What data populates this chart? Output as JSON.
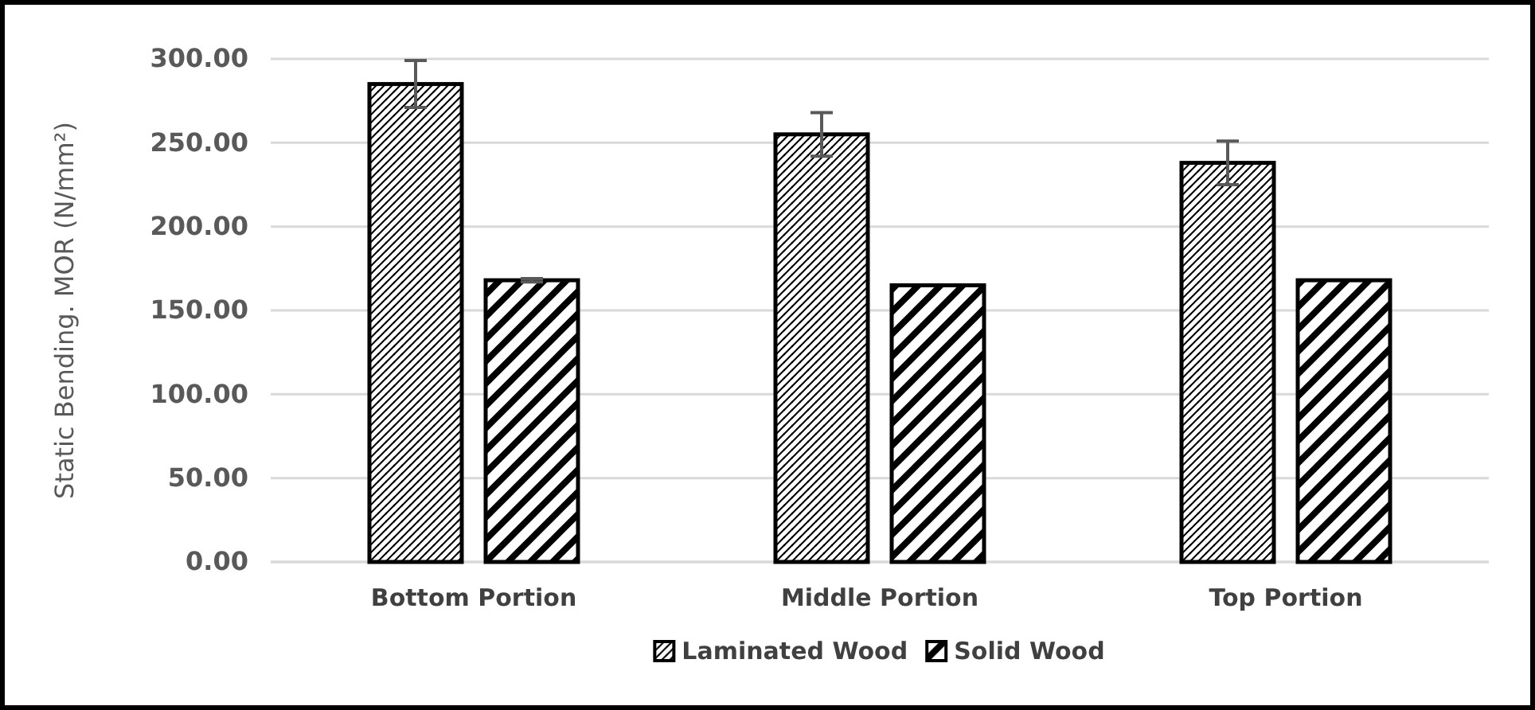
{
  "chart_data": {
    "type": "bar",
    "ylabel": "Static Bending. MOR (N/mm²)",
    "categories": [
      "Bottom Portion",
      "Middle Portion",
      "Top Portion"
    ],
    "series": [
      {
        "name": "Laminated Wood",
        "color": "#000000",
        "values": [
          285,
          255,
          238
        ],
        "errors": [
          14,
          13,
          13
        ]
      },
      {
        "name": "Solid Wood",
        "color": "#000000",
        "values": [
          168,
          165,
          168
        ],
        "errors": [
          1,
          null,
          null
        ]
      }
    ],
    "ylim": [
      0,
      300
    ],
    "yticks": [
      {
        "value": 0,
        "label": "0.00"
      },
      {
        "value": 50,
        "label": "50.00"
      },
      {
        "value": 100,
        "label": "100.00"
      },
      {
        "value": 150,
        "label": "150.00"
      },
      {
        "value": 200,
        "label": "200.00"
      },
      {
        "value": 250,
        "label": "250.00"
      },
      {
        "value": 300,
        "label": "300.00"
      }
    ],
    "grid": "y",
    "legend": "bottom"
  }
}
